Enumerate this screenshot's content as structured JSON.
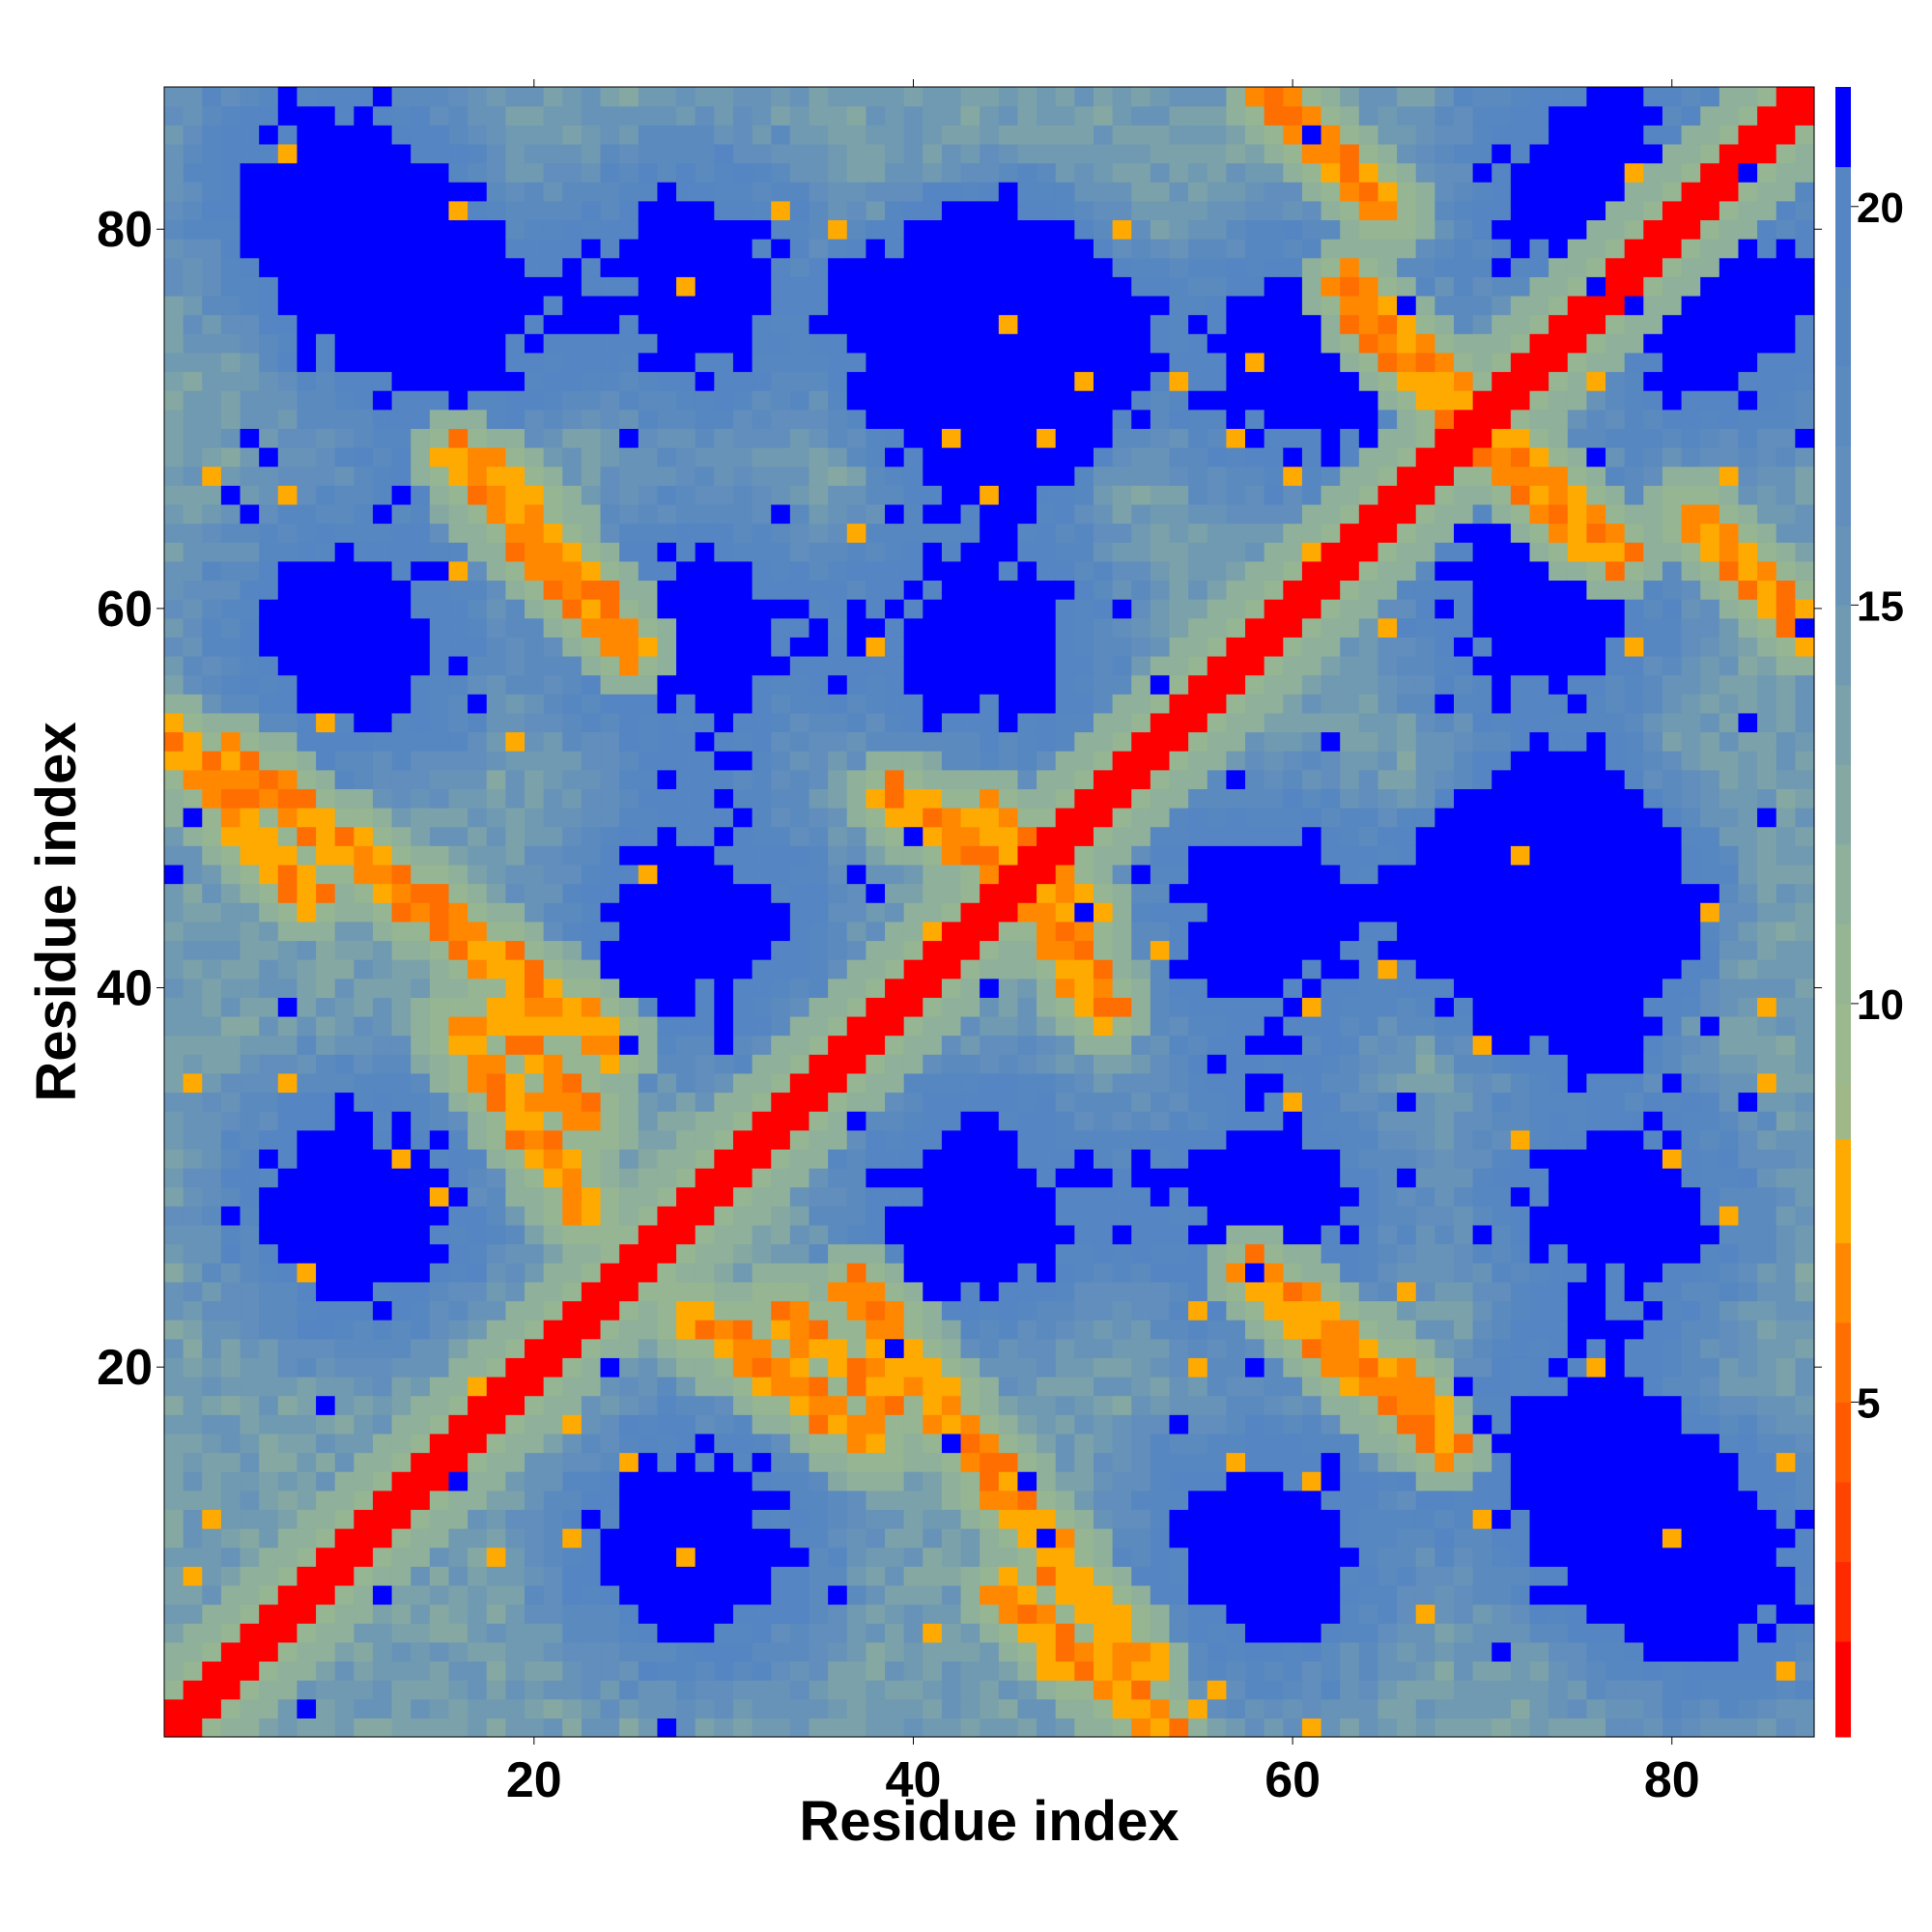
{
  "chart_data": {
    "type": "heatmap",
    "title": "",
    "xlabel": "Residue index",
    "ylabel": "Residue index",
    "n_residues": 87,
    "xlim": [
      0.5,
      87.5
    ],
    "ylim": [
      0.5,
      87.5
    ],
    "x_ticks": [
      20,
      40,
      60,
      80
    ],
    "y_ticks": [
      20,
      40,
      60,
      80
    ],
    "colorbar": {
      "range": [
        0.8,
        21.5
      ],
      "ticks": [
        5,
        10,
        15,
        20
      ],
      "levels": [
        {
          "max": 2,
          "color": "#ff0000"
        },
        {
          "max": 3,
          "color": "#ff2a00"
        },
        {
          "max": 4,
          "color": "#ff4400"
        },
        {
          "max": 5,
          "color": "#ff5a00"
        },
        {
          "max": 6,
          "color": "#ff6e00"
        },
        {
          "max": 7,
          "color": "#ff8800"
        },
        {
          "max": 8.3,
          "color": "#ffaa00"
        },
        {
          "max": 9,
          "color": "#a0b888"
        },
        {
          "max": 10,
          "color": "#9cb88e"
        },
        {
          "max": 11,
          "color": "#96b592"
        },
        {
          "max": 12,
          "color": "#8fb09a"
        },
        {
          "max": 13,
          "color": "#85a9a2"
        },
        {
          "max": 14,
          "color": "#7ba2aa"
        },
        {
          "max": 15,
          "color": "#7099b2"
        },
        {
          "max": 16,
          "color": "#6893b8"
        },
        {
          "max": 17,
          "color": "#618ebc"
        },
        {
          "max": 18,
          "color": "#5b8abf"
        },
        {
          "max": 19,
          "color": "#5787c1"
        },
        {
          "max": 20.5,
          "color": "#5585c2"
        },
        {
          "max": 99,
          "color": "#0000ff"
        }
      ]
    },
    "description_of_values": "Pairwise residue distance map (symmetric); low values (red/orange) along the main diagonal and anti-diagonal contact bands, high values (blue) in periodic islands.",
    "blue_island_centres": [
      [
        10.5,
        28.5
      ],
      [
        28.5,
        10.5
      ],
      [
        28.5,
        43.5
      ],
      [
        43.5,
        28.5
      ],
      [
        28.5,
        58.5
      ],
      [
        58.5,
        28.5
      ],
      [
        43.5,
        58.5
      ],
      [
        58.5,
        43.5
      ],
      [
        10.5,
        58.5
      ],
      [
        58.5,
        10.5
      ],
      [
        14.5,
        75
      ],
      [
        75,
        14.5
      ],
      [
        28.5,
        77
      ],
      [
        77,
        28.5
      ],
      [
        43.5,
        74
      ],
      [
        74,
        43.5
      ],
      [
        60.5,
        73
      ],
      [
        73,
        60.5
      ],
      [
        75.5,
        82.5
      ],
      [
        82.5,
        75.5
      ],
      [
        45,
        74
      ],
      [
        74,
        45
      ],
      [
        9,
        82
      ],
      [
        82,
        9
      ]
    ],
    "contact_bands": [
      {
        "type": "diagonal",
        "from": [
          1,
          1
        ],
        "to": [
          87,
          87
        ],
        "width": 1.4
      },
      {
        "type": "anti",
        "from": [
          4,
          52
        ],
        "to": [
          24,
          37
        ],
        "width": 1.1
      },
      {
        "type": "anti",
        "from": [
          18,
          67
        ],
        "to": [
          25,
          58
        ],
        "width": 1.1
      },
      {
        "type": "anti",
        "from": [
          44,
          49
        ],
        "to": [
          50,
          39
        ],
        "width": 1.3
      },
      {
        "type": "anti",
        "from": [
          45,
          8
        ],
        "to": [
          53,
          1
        ],
        "width": 1.1
      },
      {
        "type": "anti",
        "from": [
          59,
          24
        ],
        "to": [
          68,
          16
        ],
        "width": 1.1
      },
      {
        "type": "anti",
        "from": [
          63,
          77
        ],
        "to": [
          75,
          64
        ],
        "width": 1.1
      },
      {
        "type": "anti",
        "from": [
          82,
          64
        ],
        "to": [
          87,
          59
        ],
        "width": 1.1
      },
      {
        "type": "anti",
        "from": [
          59,
          87
        ],
        "to": [
          65,
          81
        ],
        "width": 1.0
      },
      {
        "type": "anti",
        "from": [
          18,
          39
        ],
        "to": [
          23,
          33
        ],
        "width": 1.0
      },
      {
        "type": "anti",
        "from": [
          28,
          23
        ],
        "to": [
          38,
          16
        ],
        "width": 1.0
      }
    ]
  }
}
